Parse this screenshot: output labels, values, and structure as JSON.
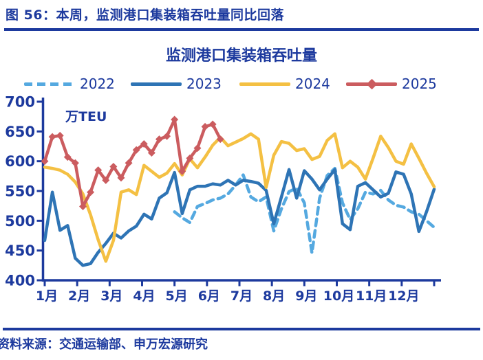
{
  "figure": {
    "title": "图 56：本周，监测港口集装箱吞吐量同比回落",
    "source": "资料来源：交通运输部、申万宏源研究"
  },
  "chart_data": {
    "type": "line",
    "title": "监测港口集装箱吞吐量",
    "unit_label": "万TEU",
    "x_tick_labels": [
      "1月",
      "2月",
      "3月",
      "4月",
      "5月",
      "6月",
      "7月",
      "8月",
      "9月",
      "10月",
      "11月",
      "12月"
    ],
    "y_ticks": [
      700,
      650,
      600,
      550,
      500,
      450,
      400
    ],
    "ylim": [
      400,
      700
    ],
    "weeks": 52,
    "grid": false,
    "legend_position": "top",
    "axis_color": "#1D3A9E",
    "series": [
      {
        "name": "2022",
        "color": "#55A9E0",
        "style": "dashed",
        "start_week": 18,
        "values": [
          515,
          505,
          497,
          524,
          529,
          535,
          538,
          545,
          560,
          577,
          540,
          532,
          540,
          483,
          520,
          549,
          555,
          530,
          446,
          538,
          576,
          588,
          530,
          502,
          520,
          548,
          545,
          551,
          535,
          526,
          523,
          515,
          511,
          500,
          489
        ]
      },
      {
        "name": "2023",
        "color": "#2E74B5",
        "style": "solid",
        "start_week": 1,
        "values": [
          467,
          548,
          484,
          492,
          437,
          425,
          428,
          447,
          462,
          479,
          471,
          483,
          491,
          511,
          503,
          538,
          547,
          581,
          512,
          552,
          558,
          558,
          562,
          560,
          568,
          560,
          568,
          566,
          563,
          551,
          495,
          540,
          586,
          538,
          584,
          570,
          552,
          570,
          586,
          495,
          485,
          558,
          564,
          552,
          540,
          546,
          582,
          578,
          545,
          482,
          515,
          553
        ]
      },
      {
        "name": "2024",
        "color": "#F4C043",
        "style": "solid",
        "start_week": 1,
        "values": [
          590,
          588,
          585,
          578,
          565,
          545,
          510,
          468,
          432,
          467,
          548,
          552,
          544,
          593,
          583,
          573,
          580,
          596,
          577,
          604,
          589,
          607,
          627,
          640,
          626,
          632,
          638,
          646,
          637,
          556,
          610,
          633,
          630,
          618,
          621,
          603,
          608,
          635,
          646,
          589,
          600,
          590,
          570,
          605,
          642,
          623,
          600,
          595,
          629,
          605,
          580,
          557
        ]
      },
      {
        "name": "2025",
        "color": "#CB5C5F",
        "style": "solid",
        "marker": "diamond",
        "start_week": 1,
        "values": [
          600,
          641,
          643,
          607,
          597,
          524,
          548,
          585,
          568,
          591,
          572,
          597,
          619,
          629,
          614,
          637,
          642,
          670,
          583,
          605,
          622,
          658,
          662,
          637
        ]
      }
    ]
  }
}
